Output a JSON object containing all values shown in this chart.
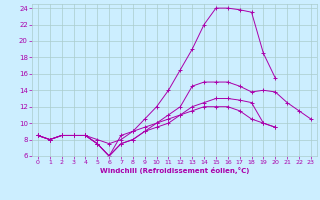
{
  "xlabel": "Windchill (Refroidissement éolien,°C)",
  "xlim": [
    -0.5,
    23.5
  ],
  "ylim": [
    6,
    24.5
  ],
  "yticks": [
    6,
    8,
    10,
    12,
    14,
    16,
    18,
    20,
    22,
    24
  ],
  "xticks": [
    0,
    1,
    2,
    3,
    4,
    5,
    6,
    7,
    8,
    9,
    10,
    11,
    12,
    13,
    14,
    15,
    16,
    17,
    18,
    19,
    20,
    21,
    22,
    23
  ],
  "bg_color": "#cceeff",
  "grid_color": "#aacccc",
  "line_color": "#aa00aa",
  "tick_color": "#aa00aa",
  "xlabel_color": "#aa00aa",
  "lines": [
    [
      8.5,
      8.0,
      8.5,
      8.5,
      8.5,
      8.0,
      7.5,
      8.0,
      9.0,
      10.5,
      12.0,
      14.0,
      16.5,
      19.0,
      22.0,
      24.0,
      24.0,
      23.8,
      23.5,
      18.5,
      15.5,
      null,
      null,
      null
    ],
    [
      8.5,
      8.0,
      8.5,
      8.5,
      8.5,
      7.5,
      6.0,
      7.5,
      8.0,
      9.0,
      10.0,
      11.0,
      12.0,
      14.5,
      15.0,
      15.0,
      15.0,
      14.5,
      13.8,
      14.0,
      13.8,
      12.5,
      11.5,
      10.5
    ],
    [
      8.5,
      8.0,
      8.5,
      8.5,
      8.5,
      7.5,
      6.0,
      7.5,
      8.0,
      9.0,
      9.5,
      10.0,
      11.0,
      12.0,
      12.5,
      13.0,
      13.0,
      12.8,
      12.5,
      10.0,
      9.5,
      null,
      null,
      null
    ],
    [
      8.5,
      8.0,
      8.5,
      8.5,
      8.5,
      7.5,
      6.0,
      8.5,
      9.0,
      9.5,
      10.0,
      10.5,
      11.0,
      11.5,
      12.0,
      12.0,
      12.0,
      11.5,
      10.5,
      10.0,
      9.5,
      null,
      null,
      null
    ]
  ]
}
